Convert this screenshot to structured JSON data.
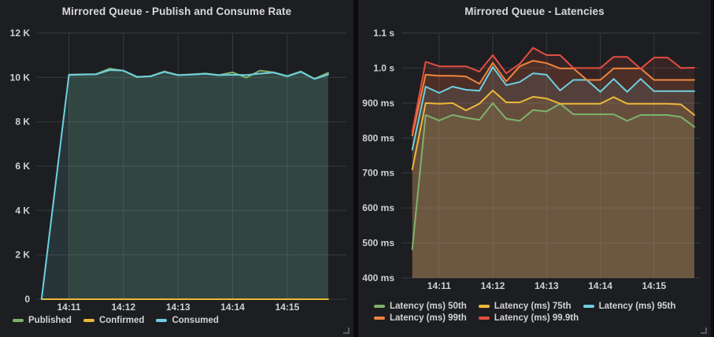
{
  "app": "grafana-dashboard",
  "theme": {
    "page_bg": "#0b0b0c",
    "panel_bg": "#1d1e21",
    "grid_color": "#383a3e",
    "tick_text_color": "#cfd0d2",
    "title_text_color": "#d8d9da",
    "fill_opacity": 0.13
  },
  "panels": [
    {
      "title": "Mirrored Queue - Publish and Consume Rate"
    },
    {
      "title": "Mirrored Queue - Latencies"
    }
  ],
  "chart_data": [
    {
      "type": "line",
      "title": "Mirrored Queue - Publish and Consume Rate",
      "grid": true,
      "legend_position": "bottom-left",
      "x_axis": {
        "range": [
          "14:10:25",
          "14:16:05"
        ],
        "ticks": [
          {
            "label": "14:11",
            "time": "14:11:00"
          },
          {
            "label": "14:12",
            "time": "14:12:00"
          },
          {
            "label": "14:13",
            "time": "14:13:00"
          },
          {
            "label": "14:14",
            "time": "14:14:00"
          },
          {
            "label": "14:15",
            "time": "14:15:00"
          }
        ]
      },
      "y_axis": {
        "range": [
          0,
          12000
        ],
        "ticks": [
          {
            "label": "0",
            "value": 0
          },
          {
            "label": "2 K",
            "value": 2000
          },
          {
            "label": "4 K",
            "value": 4000
          },
          {
            "label": "6 K",
            "value": 6000
          },
          {
            "label": "8 K",
            "value": 8000
          },
          {
            "label": "10 K",
            "value": 10000
          },
          {
            "label": "12 K",
            "value": 12000
          }
        ]
      },
      "series": [
        {
          "name": "Published",
          "color": "#7EB26D",
          "points": [
            [
              "14:11:00",
              10130
            ],
            [
              "14:11:15",
              10140
            ],
            [
              "14:11:30",
              10150
            ],
            [
              "14:11:45",
              10400
            ],
            [
              "14:12:00",
              10300
            ],
            [
              "14:12:15",
              10010
            ],
            [
              "14:12:30",
              10060
            ],
            [
              "14:12:45",
              10270
            ],
            [
              "14:13:00",
              10110
            ],
            [
              "14:13:15",
              10140
            ],
            [
              "14:13:30",
              10180
            ],
            [
              "14:13:45",
              10110
            ],
            [
              "14:14:00",
              10230
            ],
            [
              "14:14:15",
              9990
            ],
            [
              "14:14:30",
              10310
            ],
            [
              "14:14:45",
              10230
            ],
            [
              "14:15:00",
              10060
            ],
            [
              "14:15:15",
              10270
            ],
            [
              "14:15:30",
              9940
            ],
            [
              "14:15:45",
              10210
            ]
          ]
        },
        {
          "name": "Confirmed",
          "color": "#EAB839",
          "points": [
            [
              "14:10:30",
              0
            ],
            [
              "14:15:45",
              0
            ]
          ]
        },
        {
          "name": "Consumed",
          "color": "#6ED0E0",
          "points": [
            [
              "14:10:30",
              0
            ],
            [
              "14:11:00",
              10110
            ],
            [
              "14:11:15",
              10130
            ],
            [
              "14:11:30",
              10140
            ],
            [
              "14:11:45",
              10330
            ],
            [
              "14:12:00",
              10310
            ],
            [
              "14:12:15",
              10030
            ],
            [
              "14:12:30",
              10050
            ],
            [
              "14:12:45",
              10250
            ],
            [
              "14:13:00",
              10100
            ],
            [
              "14:13:15",
              10130
            ],
            [
              "14:13:30",
              10160
            ],
            [
              "14:13:45",
              10100
            ],
            [
              "14:14:00",
              10120
            ],
            [
              "14:14:15",
              10110
            ],
            [
              "14:14:30",
              10170
            ],
            [
              "14:14:45",
              10220
            ],
            [
              "14:15:00",
              10050
            ],
            [
              "14:15:15",
              10250
            ],
            [
              "14:15:30",
              9930
            ],
            [
              "14:15:45",
              10130
            ]
          ]
        }
      ]
    },
    {
      "type": "line",
      "title": "Mirrored Queue - Latencies",
      "grid": true,
      "legend_position": "bottom-left",
      "x_axis": {
        "range": [
          "14:10:18",
          "14:15:52"
        ],
        "ticks": [
          {
            "label": "14:11",
            "time": "14:11:00"
          },
          {
            "label": "14:12",
            "time": "14:12:00"
          },
          {
            "label": "14:13",
            "time": "14:13:00"
          },
          {
            "label": "14:14",
            "time": "14:14:00"
          },
          {
            "label": "14:15",
            "time": "14:15:00"
          }
        ]
      },
      "y_axis": {
        "range": [
          400,
          1100
        ],
        "ticks": [
          {
            "label": "400 ms",
            "value": 400
          },
          {
            "label": "500 ms",
            "value": 500
          },
          {
            "label": "600 ms",
            "value": 600
          },
          {
            "label": "700 ms",
            "value": 700
          },
          {
            "label": "800 ms",
            "value": 800
          },
          {
            "label": "900 ms",
            "value": 900
          },
          {
            "label": "1.0 s",
            "value": 1000
          },
          {
            "label": "1.1 s",
            "value": 1100
          }
        ]
      },
      "series": [
        {
          "name": "Latency (ms) 50th",
          "color": "#7EB26D",
          "points": [
            [
              "14:10:30",
              482
            ],
            [
              "14:10:45",
              866
            ],
            [
              "14:11:00",
              850
            ],
            [
              "14:11:15",
              866
            ],
            [
              "14:11:30",
              858
            ],
            [
              "14:11:45",
              852
            ],
            [
              "14:12:00",
              900
            ],
            [
              "14:12:15",
              855
            ],
            [
              "14:12:30",
              849
            ],
            [
              "14:12:45",
              880
            ],
            [
              "14:13:00",
              876
            ],
            [
              "14:13:15",
              898
            ],
            [
              "14:13:30",
              868
            ],
            [
              "14:13:45",
              868
            ],
            [
              "14:14:00",
              868
            ],
            [
              "14:14:15",
              868
            ],
            [
              "14:14:30",
              849
            ],
            [
              "14:14:45",
              866
            ],
            [
              "14:15:00",
              866
            ],
            [
              "14:15:15",
              866
            ],
            [
              "14:15:30",
              860
            ],
            [
              "14:15:45",
              832
            ]
          ]
        },
        {
          "name": "Latency (ms) 75th",
          "color": "#EAB839",
          "points": [
            [
              "14:10:30",
              710
            ],
            [
              "14:10:45",
              900
            ],
            [
              "14:11:00",
              898
            ],
            [
              "14:11:15",
              900
            ],
            [
              "14:11:30",
              879
            ],
            [
              "14:11:45",
              898
            ],
            [
              "14:12:00",
              936
            ],
            [
              "14:12:15",
              902
            ],
            [
              "14:12:30",
              902
            ],
            [
              "14:12:45",
              918
            ],
            [
              "14:13:00",
              913
            ],
            [
              "14:13:15",
              898
            ],
            [
              "14:13:30",
              898
            ],
            [
              "14:13:45",
              898
            ],
            [
              "14:14:00",
              898
            ],
            [
              "14:14:15",
              917
            ],
            [
              "14:14:30",
              898
            ],
            [
              "14:14:45",
              898
            ],
            [
              "14:15:00",
              898
            ],
            [
              "14:15:15",
              898
            ],
            [
              "14:15:30",
              896
            ],
            [
              "14:15:45",
              866
            ]
          ]
        },
        {
          "name": "Latency (ms) 95th",
          "color": "#6ED0E0",
          "points": [
            [
              "14:10:30",
              767
            ],
            [
              "14:10:45",
              947
            ],
            [
              "14:11:00",
              929
            ],
            [
              "14:11:15",
              947
            ],
            [
              "14:11:30",
              938
            ],
            [
              "14:11:45",
              935
            ],
            [
              "14:12:00",
              1003
            ],
            [
              "14:12:15",
              951
            ],
            [
              "14:12:30",
              960
            ],
            [
              "14:12:45",
              985
            ],
            [
              "14:13:00",
              981
            ],
            [
              "14:13:15",
              936
            ],
            [
              "14:13:30",
              966
            ],
            [
              "14:13:45",
              966
            ],
            [
              "14:14:00",
              932
            ],
            [
              "14:14:15",
              969
            ],
            [
              "14:14:30",
              932
            ],
            [
              "14:14:45",
              969
            ],
            [
              "14:15:00",
              934
            ],
            [
              "14:15:15",
              934
            ],
            [
              "14:15:30",
              934
            ],
            [
              "14:15:45",
              934
            ]
          ]
        },
        {
          "name": "Latency (ms) 99th",
          "color": "#EF843C",
          "points": [
            [
              "14:10:30",
              807
            ],
            [
              "14:10:45",
              981
            ],
            [
              "14:11:00",
              978
            ],
            [
              "14:11:15",
              978
            ],
            [
              "14:11:30",
              976
            ],
            [
              "14:11:45",
              955
            ],
            [
              "14:12:00",
              1015
            ],
            [
              "14:12:15",
              962
            ],
            [
              "14:12:30",
              1005
            ],
            [
              "14:12:45",
              1021
            ],
            [
              "14:13:00",
              1014
            ],
            [
              "14:13:15",
              999
            ],
            [
              "14:13:30",
              999
            ],
            [
              "14:13:45",
              966
            ],
            [
              "14:14:00",
              966
            ],
            [
              "14:14:15",
              999
            ],
            [
              "14:14:30",
              999
            ],
            [
              "14:14:45",
              999
            ],
            [
              "14:15:00",
              966
            ],
            [
              "14:15:15",
              966
            ],
            [
              "14:15:30",
              966
            ],
            [
              "14:15:45",
              966
            ]
          ]
        },
        {
          "name": "Latency (ms) 99.9th",
          "color": "#E24D42",
          "points": [
            [
              "14:10:30",
              817
            ],
            [
              "14:10:45",
              1018
            ],
            [
              "14:11:00",
              1005
            ],
            [
              "14:11:15",
              1005
            ],
            [
              "14:11:30",
              1005
            ],
            [
              "14:11:45",
              990
            ],
            [
              "14:12:00",
              1037
            ],
            [
              "14:12:15",
              985
            ],
            [
              "14:12:30",
              1012
            ],
            [
              "14:12:45",
              1058
            ],
            [
              "14:13:00",
              1037
            ],
            [
              "14:13:15",
              1037
            ],
            [
              "14:13:30",
              1000
            ],
            [
              "14:13:45",
              1000
            ],
            [
              "14:14:00",
              1000
            ],
            [
              "14:14:15",
              1032
            ],
            [
              "14:14:30",
              1032
            ],
            [
              "14:14:45",
              998
            ],
            [
              "14:15:00",
              1030
            ],
            [
              "14:15:15",
              1030
            ],
            [
              "14:15:30",
              1000
            ],
            [
              "14:15:45",
              1001
            ]
          ]
        }
      ]
    }
  ]
}
